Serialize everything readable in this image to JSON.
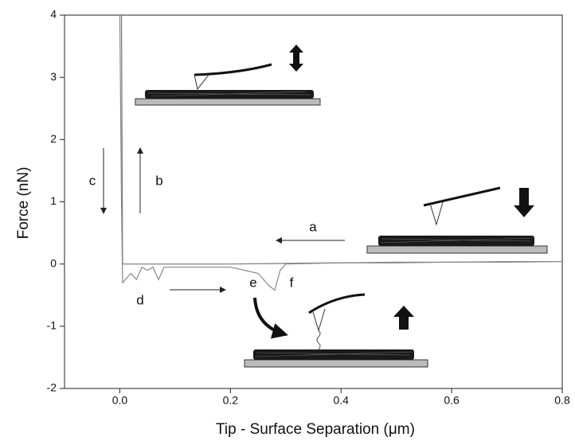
{
  "chart_data": {
    "type": "line",
    "xlabel": "Tip - Surface Separation (μm)",
    "ylabel": "Force (nN)",
    "xlim": [
      -0.1,
      0.8
    ],
    "ylim": [
      -2,
      4
    ],
    "xticks": [
      {
        "value": 0,
        "label": "0.0"
      },
      0.2,
      0.4,
      0.6,
      0.8
    ],
    "yticks": [
      -2,
      -1,
      0,
      1,
      2,
      3,
      4
    ],
    "annotations": [
      "a",
      "b",
      "c",
      "d",
      "e",
      "f"
    ],
    "series": [
      {
        "color": "#777777",
        "x": [
          0.8,
          0.7,
          0.6,
          0.5,
          0.4,
          0.3,
          0.2,
          0.1,
          0.02,
          0.005,
          0.004,
          0.003
        ],
        "values": [
          0.04,
          0.03,
          0.03,
          0.02,
          0.02,
          0.01,
          0.0,
          0.0,
          0.0,
          0.0,
          2,
          4
        ]
      },
      {
        "color": "#888888",
        "x": [
          0.0,
          0.003,
          0.005,
          0.01,
          0.02,
          0.03,
          0.04,
          0.05,
          0.06,
          0.07,
          0.08,
          0.1,
          0.15,
          0.2,
          0.25,
          0.27,
          0.28,
          0.29,
          0.3,
          0.4,
          0.5,
          0.6,
          0.7,
          0.8
        ],
        "values": [
          4,
          1,
          -0.3,
          -0.25,
          -0.15,
          -0.25,
          -0.05,
          -0.1,
          -0.05,
          -0.25,
          -0.05,
          -0.05,
          -0.05,
          -0.05,
          -0.15,
          -0.35,
          -0.42,
          -0.1,
          0.0,
          0.02,
          0.03,
          0.03,
          0.04,
          0.04
        ]
      }
    ]
  }
}
